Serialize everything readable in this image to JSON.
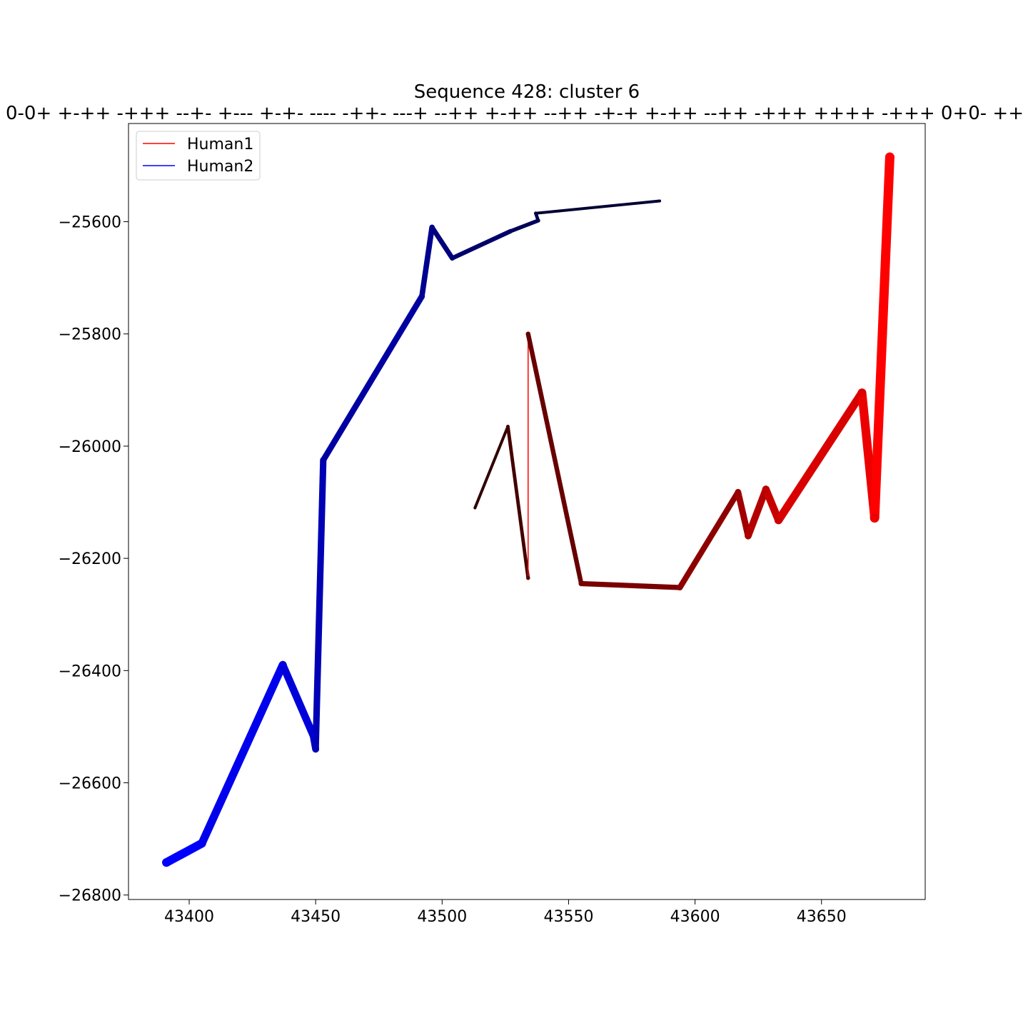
{
  "chart_data": {
    "type": "line",
    "title": "Sequence 428: cluster 6",
    "subtitle": "0-0+ +-++ -+++ --+- +--- +-+- ---- -++- ---+ --++ +-++ --++ -+-+ +-++ --++ -+++ ++++ -+++ 0+0- ++",
    "xlabel": "",
    "ylabel": "",
    "xlim": [
      43376,
      43691
    ],
    "ylim": [
      -26808,
      -25425
    ],
    "x_ticks": [
      43400,
      43450,
      43500,
      43550,
      43600,
      43650
    ],
    "y_ticks": [
      -25600,
      -25800,
      -26000,
      -26200,
      -26400,
      -26600,
      -26800
    ],
    "x_tick_labels": [
      "43400",
      "43450",
      "43500",
      "43550",
      "43600",
      "43650"
    ],
    "y_tick_labels": [
      "−25600",
      "−25800",
      "−26000",
      "−26200",
      "−26400",
      "−26600",
      "−26800"
    ],
    "grid": false,
    "legend_position": "upper-left",
    "series": [
      {
        "name": "Human1",
        "color": "#ff0000",
        "gradient_from": "#300000",
        "gradient_to": "#ff0000",
        "x": [
          43513,
          43526,
          43534,
          43534,
          43555,
          43594,
          43617,
          43621,
          43628,
          43633,
          43666,
          43671,
          43677
        ],
        "y": [
          -26110,
          -25965,
          -26235,
          -25800,
          -26245,
          -26252,
          -26082,
          -26160,
          -26077,
          -26132,
          -25905,
          -26128,
          -25485
        ]
      },
      {
        "name": "Human2",
        "color": "#0000ff",
        "gradient_from": "#0000ff",
        "gradient_to": "#000033",
        "x": [
          43391,
          43405,
          43437,
          43449,
          43450,
          43453,
          43492,
          43496,
          43504,
          43527,
          43538,
          43537,
          43586
        ],
        "y": [
          -26742,
          -26708,
          -26390,
          -26515,
          -26540,
          -26025,
          -25733,
          -25610,
          -25665,
          -25617,
          -25598,
          -25585,
          -25563
        ]
      }
    ]
  }
}
